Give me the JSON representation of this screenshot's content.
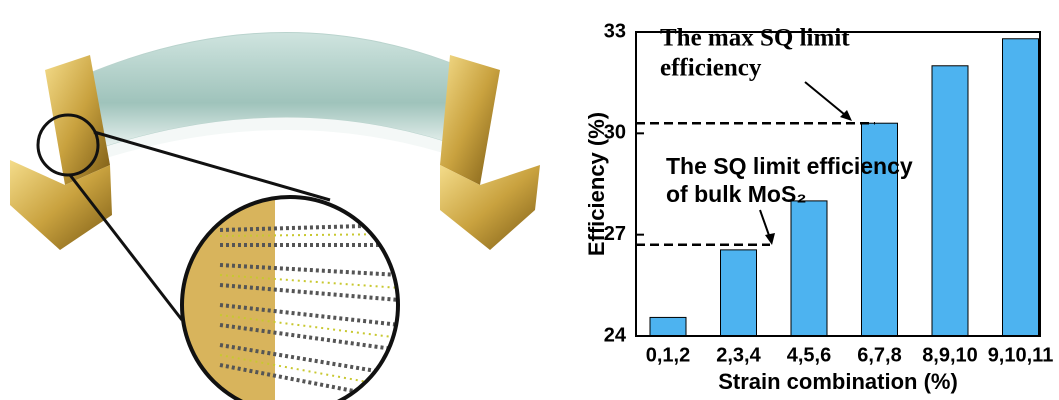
{
  "chart_data": {
    "type": "bar",
    "x_label": "Strain combination (%)",
    "y_label": "Efficiency (%)",
    "categories": [
      "0,1,2",
      "2,3,4",
      "4,5,6",
      "6,7,8",
      "8,9,10",
      "9,10,11"
    ],
    "values": [
      24.55,
      26.55,
      28.0,
      30.3,
      32.0,
      32.8
    ],
    "color": "#4db3f0",
    "ylim": [
      24,
      33
    ],
    "yticks": [
      24,
      27,
      30,
      33
    ],
    "annotations": [
      {
        "lines": [
          "The max SQ limit",
          "efficiency"
        ],
        "value": 30.3
      },
      {
        "lines": [
          "The SQ limit efficiency",
          "of bulk MoS₂"
        ],
        "value": 26.7
      }
    ]
  }
}
